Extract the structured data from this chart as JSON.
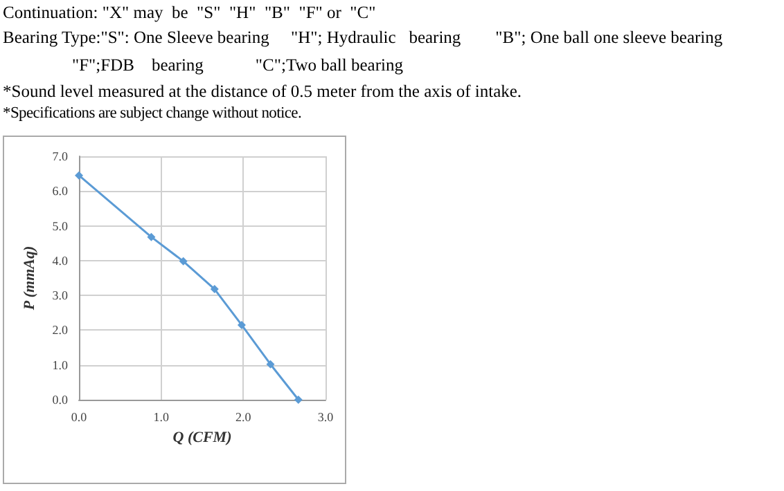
{
  "chart_data": {
    "type": "line",
    "xlabel": "Q (CFM)",
    "ylabel": "P (mmAq)",
    "annotations": [
      "Continuation: \"X\" may  be  \"S\"  \"H\"  \"B\"  \"F\" or  \"C\"",
      "Bearing Type:\"S\": One Sleeve bearing     \"H\"; Hydraulic   bearing        \"B\"; One ball one sleeve bearing",
      "                \"F\";FDB    bearing            \"C\";Two ball bearing",
      "*Sound level measured at the distance of 0.5 meter from the axis of intake.",
      "*Specifications are subject change without notice."
    ],
    "series": [
      {
        "color": "#5b9bd5",
        "x": [
          0,
          0.88,
          1.27,
          1.65,
          1.98,
          2.33,
          2.67
        ],
        "values": [
          6.45,
          4.68,
          3.98,
          3.18,
          2.15,
          1.02,
          0
        ]
      }
    ],
    "xlim": [
      0,
      3
    ],
    "xticks": [
      {
        "value": 0,
        "label": "0.0"
      },
      {
        "value": 1,
        "label": "1.0"
      },
      {
        "value": 2,
        "label": "2.0"
      },
      {
        "value": 3,
        "label": "3.0"
      }
    ],
    "ylim": [
      0,
      7
    ],
    "yticks": [
      {
        "value": 0,
        "label": "0.0"
      },
      {
        "value": 1,
        "label": "1.0"
      },
      {
        "value": 2,
        "label": "2.0"
      },
      {
        "value": 3,
        "label": "3.0"
      },
      {
        "value": 4,
        "label": "4.0"
      },
      {
        "value": 5,
        "label": "5.0"
      },
      {
        "value": 6,
        "label": "6.0"
      },
      {
        "value": 7,
        "label": "7.0"
      }
    ],
    "grid": true,
    "marker": "diamond",
    "line_style": "solid"
  }
}
